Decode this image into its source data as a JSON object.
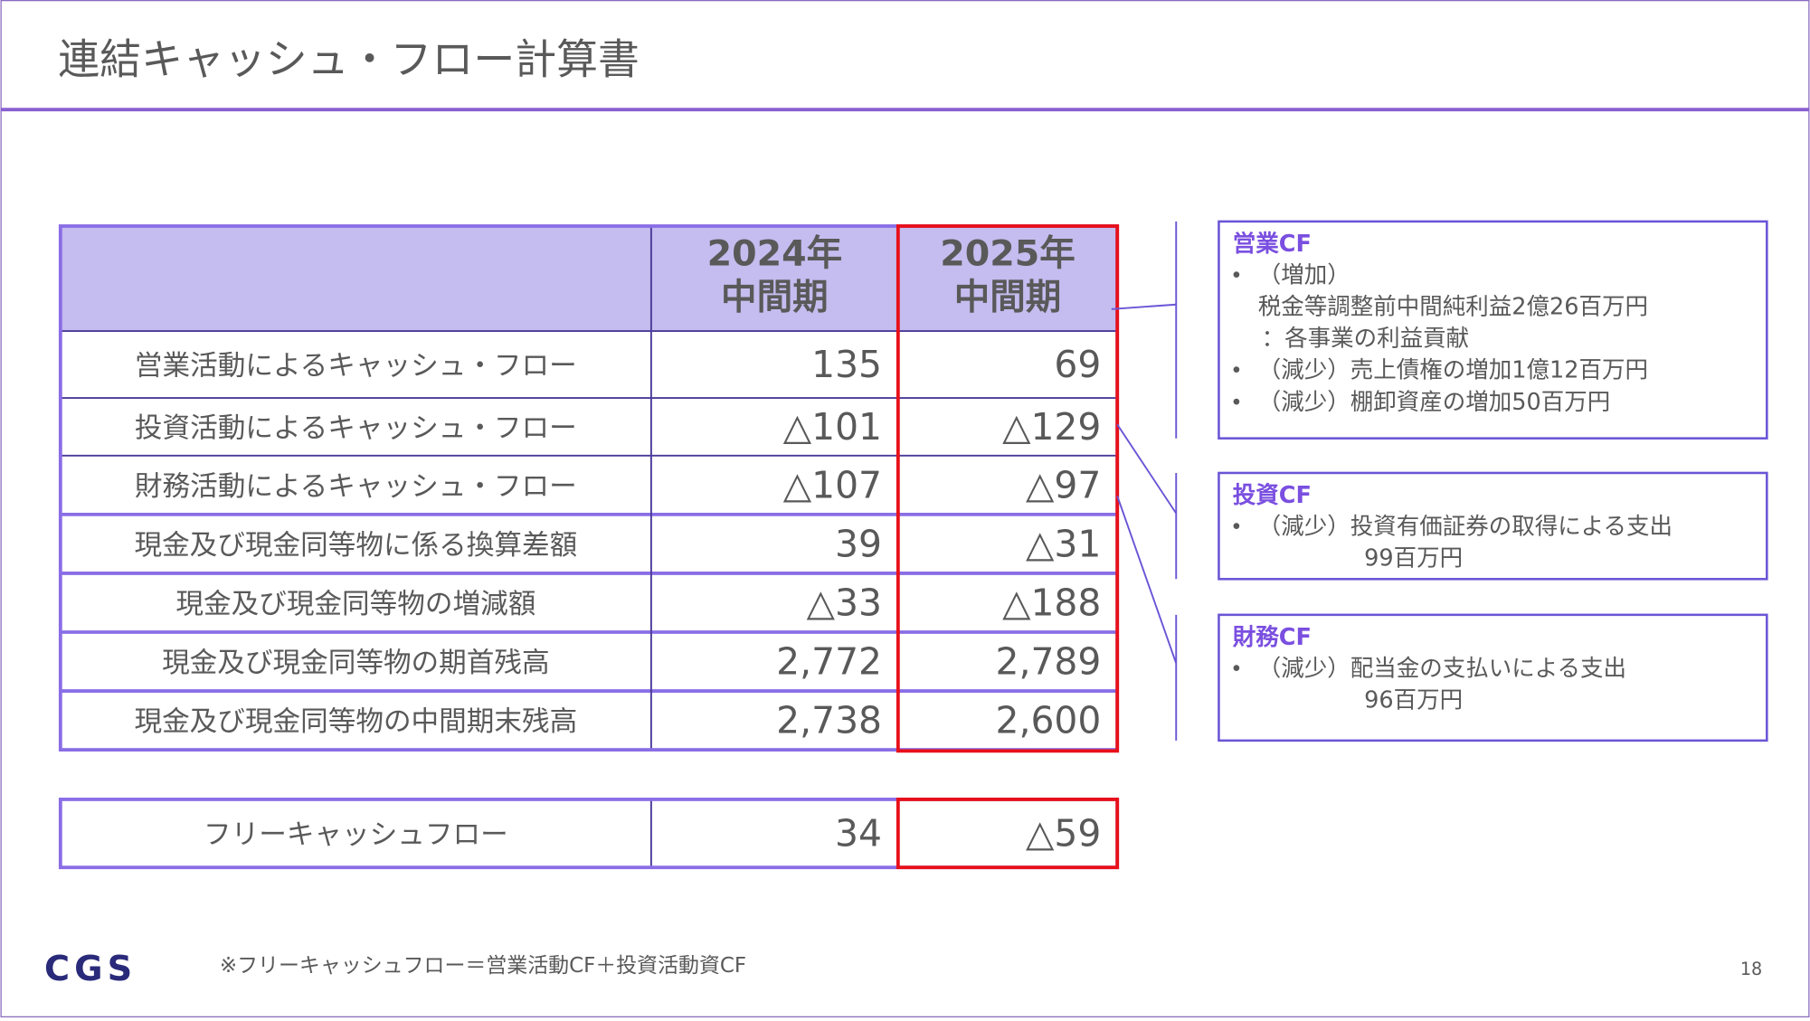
{
  "title": "連結キャッシュ・フロー計算書",
  "table": {
    "header": [
      "2024年\n中間期",
      "2025年\n中間期"
    ],
    "rows": [
      [
        "営業活動によるキャッシュ・フロー",
        "135",
        "69"
      ],
      [
        "投資活動によるキャッシュ・フロー",
        "△101",
        "△129"
      ],
      [
        "財務活動によるキャッシュ・フロー",
        "△107",
        "△97"
      ],
      [
        "現金及び現金同等物に係る換算差額",
        "39",
        "△31"
      ],
      [
        "現金及び現金同等物の増減額",
        "△33",
        "△188"
      ],
      [
        "現金及び現金同等物の期首残高",
        "2,772",
        "2,789"
      ],
      [
        "現金及び現金同等物の中間期末残高",
        "2,738",
        "2,600"
      ]
    ],
    "free_row": [
      "フリーキャッシュフロー",
      "34",
      "△59"
    ]
  },
  "callouts": [
    {
      "title": "営業CF",
      "items": [
        [
          "（増加）",
          "税金等調整前中間純利益2億26百万円",
          "：各事業の利益貢献"
        ],
        [
          "（減少）売上債権の増加1億12百万円"
        ],
        [
          "（減少）棚卸資産の増加50百万円"
        ]
      ]
    },
    {
      "title": "投資CF",
      "items": [
        [
          "（減少）投資有価証券の取得による支出",
          "99百万円"
        ]
      ]
    },
    {
      "title": "財務CF",
      "items": [
        [
          "（減少）配当金の支払いによる支出",
          "96百万円"
        ]
      ]
    }
  ],
  "footnote": "※フリーキャッシュフロー＝営業活動CF＋投資活動資CF",
  "logo": "CGS",
  "page_number": "18"
}
